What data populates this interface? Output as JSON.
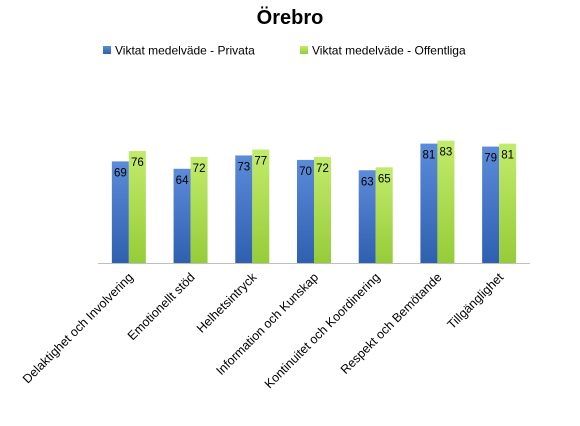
{
  "chart_data": {
    "type": "bar",
    "title": "Örebro",
    "xlabel": "",
    "ylabel": "",
    "ylim": [
      0,
      90
    ],
    "grid": false,
    "legend_position": "top",
    "categories": [
      "Delaktighet och Involvering",
      "Emotionellt stöd",
      "Helhetsintryck",
      "Information och Kunskap",
      "Kontinuitet och Koordinering",
      "Respekt och Bemötande",
      "Tillgänglighet"
    ],
    "series": [
      {
        "name": "Viktat medelväde - Privata",
        "color": "#4472C4",
        "values": [
          69,
          64,
          73,
          70,
          63,
          81,
          79
        ]
      },
      {
        "name": "Viktat medelväde - Offentliga",
        "color": "#A9D94C",
        "values": [
          76,
          72,
          77,
          72,
          65,
          83,
          81
        ]
      }
    ]
  }
}
